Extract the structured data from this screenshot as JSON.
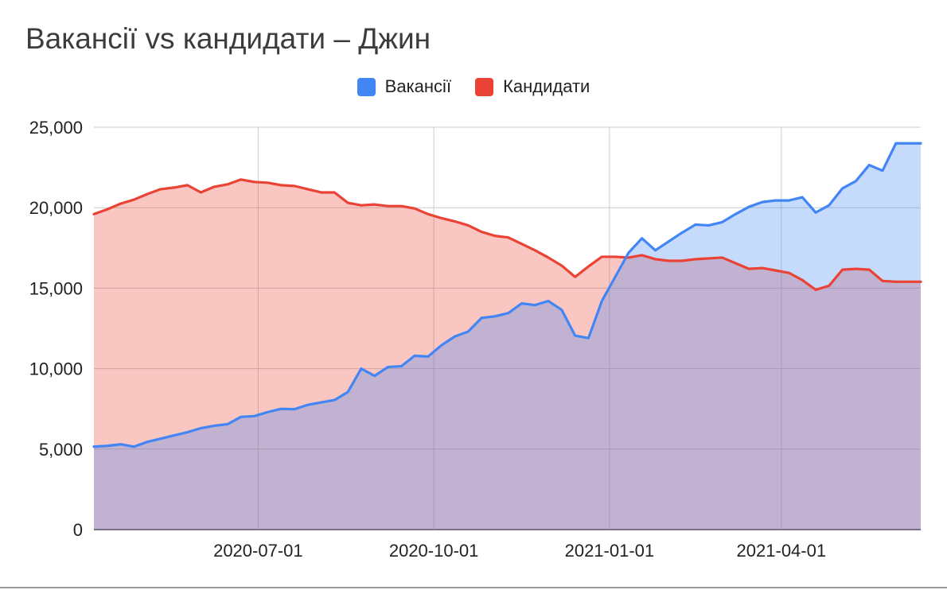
{
  "chart_data": {
    "type": "area",
    "title": "Вакансії vs кандидати – Джин",
    "xlabel": "",
    "ylabel": "",
    "ylim": [
      0,
      25000
    ],
    "yticks": [
      0,
      5000,
      10000,
      15000,
      20000,
      25000
    ],
    "ytick_labels": [
      "0",
      "5,000",
      "10,000",
      "15,000",
      "20,000",
      "25,000"
    ],
    "xlim": [
      "2020-04-06",
      "2021-06-13"
    ],
    "xticks": [
      "2020-07-01",
      "2020-10-01",
      "2021-01-01",
      "2021-04-01"
    ],
    "xtick_labels": [
      "2020-07-01",
      "2020-10-01",
      "2021-01-01",
      "2021-04-01"
    ],
    "grid": true,
    "legend_position": "top-center",
    "x": [
      "2020-04-06",
      "2020-04-13",
      "2020-04-20",
      "2020-04-27",
      "2020-05-04",
      "2020-05-11",
      "2020-05-18",
      "2020-05-25",
      "2020-06-01",
      "2020-06-08",
      "2020-06-15",
      "2020-06-22",
      "2020-06-29",
      "2020-07-06",
      "2020-07-13",
      "2020-07-20",
      "2020-07-27",
      "2020-08-03",
      "2020-08-10",
      "2020-08-17",
      "2020-08-24",
      "2020-08-31",
      "2020-09-07",
      "2020-09-14",
      "2020-09-21",
      "2020-09-28",
      "2020-10-05",
      "2020-10-12",
      "2020-10-19",
      "2020-10-26",
      "2020-11-02",
      "2020-11-09",
      "2020-11-16",
      "2020-11-23",
      "2020-11-30",
      "2020-12-07",
      "2020-12-14",
      "2020-12-21",
      "2020-12-28",
      "2021-01-04",
      "2021-01-11",
      "2021-01-18",
      "2021-01-25",
      "2021-02-01",
      "2021-02-08",
      "2021-02-15",
      "2021-02-22",
      "2021-03-01",
      "2021-03-08",
      "2021-03-15",
      "2021-03-22",
      "2021-03-29",
      "2021-04-05",
      "2021-04-12",
      "2021-04-19",
      "2021-04-26",
      "2021-05-03",
      "2021-05-10",
      "2021-05-17",
      "2021-05-24",
      "2021-05-31",
      "2021-06-07",
      "2021-06-13"
    ],
    "series": [
      {
        "name": "Вакансії",
        "color": "#4285f4",
        "fill": "#c8dbfb",
        "values": [
          5150,
          5200,
          5300,
          5150,
          5450,
          5650,
          5850,
          6050,
          6300,
          6450,
          6550,
          7000,
          7050,
          7300,
          7500,
          7480,
          7750,
          7900,
          8050,
          8550,
          10000,
          9550,
          10100,
          10150,
          10800,
          10750,
          11450,
          12000,
          12300,
          13150,
          13250,
          13450,
          14050,
          13950,
          14200,
          13650,
          12050,
          11900,
          14200,
          15700,
          17200,
          18100,
          17350,
          17900,
          18450,
          18950,
          18900,
          19100,
          19600,
          20050,
          20350,
          20450,
          20450,
          20650,
          19700,
          20150,
          21200,
          21650,
          22650,
          22300,
          24000,
          24000,
          24000
        ]
      },
      {
        "name": "Кандидати",
        "color": "#ea4335",
        "fill": "#f7c5c1",
        "values": [
          19600,
          19900,
          20250,
          20500,
          20850,
          21150,
          21250,
          21400,
          20950,
          21300,
          21450,
          21750,
          21600,
          21550,
          21400,
          21350,
          21150,
          20950,
          20950,
          20300,
          20150,
          20200,
          20100,
          20100,
          19950,
          19600,
          19350,
          19150,
          18900,
          18500,
          18250,
          18150,
          17750,
          17350,
          16900,
          16400,
          15700,
          16350,
          16950,
          16950,
          16900,
          17050,
          16800,
          16700,
          16700,
          16800,
          16850,
          16900,
          16550,
          16200,
          16250,
          16100,
          15950,
          15500,
          14900,
          15150,
          16150,
          16200,
          16150,
          15450,
          15400,
          15400,
          15400
        ]
      }
    ]
  }
}
